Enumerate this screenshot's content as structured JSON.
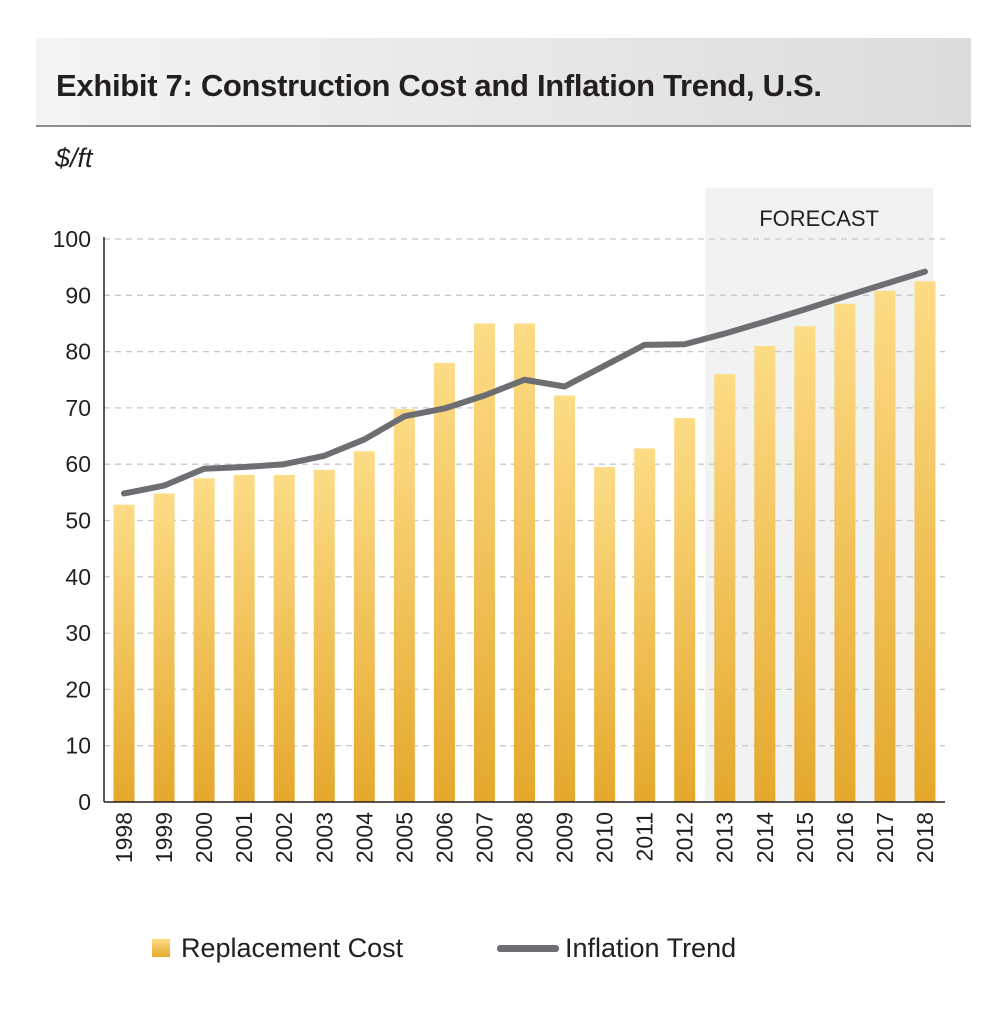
{
  "header": {
    "title": "Exhibit 7: Construction Cost and Inflation Trend, U.S."
  },
  "colors": {
    "bar_top": "#fddc86",
    "bar_bottom": "#e5a82c",
    "line": "#6d6e71",
    "forecast_shade": "#f1f2f2",
    "gridline": "#c8c8c8"
  },
  "chart_data": {
    "type": "bar",
    "ylabel": "$/ft",
    "ylim": [
      0,
      100
    ],
    "yticks": [
      0,
      10,
      20,
      30,
      40,
      50,
      60,
      70,
      80,
      90,
      100
    ],
    "grid": true,
    "legend_position": "bottom",
    "categories": [
      "1998",
      "1999",
      "2000",
      "2001",
      "2002",
      "2003",
      "2004",
      "2005",
      "2006",
      "2007",
      "2008",
      "2009",
      "2010",
      "2011",
      "2012",
      "2013",
      "2014",
      "2015",
      "2016",
      "2017",
      "2018"
    ],
    "forecast": {
      "label": "FORECAST",
      "from": "2013",
      "to": "2018"
    },
    "series": [
      {
        "name": "Replacement Cost",
        "type": "bar",
        "values": [
          52.8,
          54.8,
          57.5,
          58.1,
          58.1,
          59.0,
          62.3,
          69.8,
          78.0,
          85.0,
          85.0,
          72.2,
          59.5,
          62.8,
          68.2,
          76.0,
          81.0,
          84.5,
          88.5,
          90.8,
          92.5
        ]
      },
      {
        "name": "Inflation Trend",
        "type": "line",
        "values": [
          54.8,
          56.2,
          59.2,
          59.5,
          60.0,
          61.5,
          64.4,
          68.5,
          69.9,
          72.2,
          75.0,
          73.8,
          77.5,
          81.2,
          81.3,
          83.2,
          85.3,
          87.5,
          89.8,
          92.0,
          94.2
        ]
      }
    ]
  }
}
